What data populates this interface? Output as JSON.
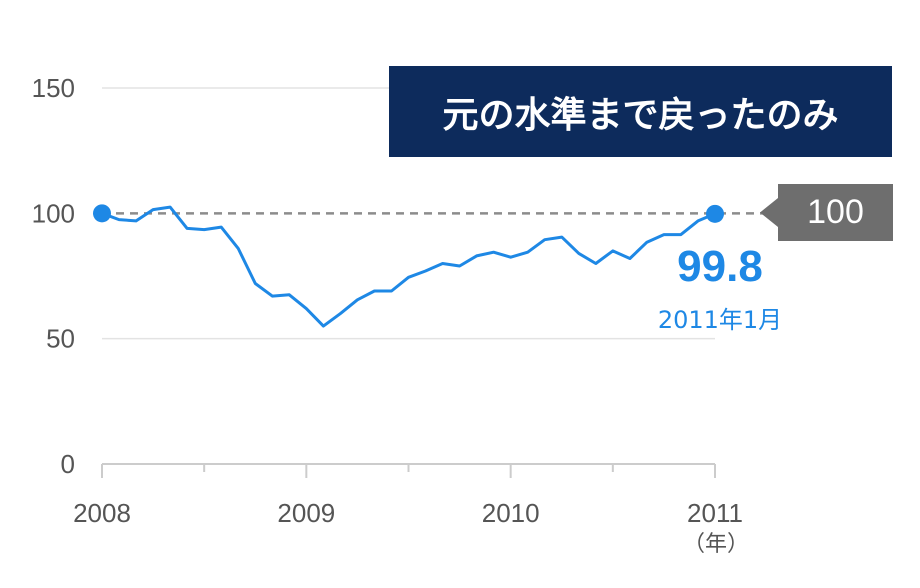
{
  "chart_data": {
    "type": "line",
    "title": "元の水準まで戻ったのみ",
    "ylim": [
      0,
      150
    ],
    "yticks": [
      0,
      50,
      100,
      150
    ],
    "xlim": [
      2008,
      2011
    ],
    "xticks": [
      "2008",
      "2009",
      "2010",
      "2011"
    ],
    "x_unit": "（年）",
    "reference_line": {
      "value": 100,
      "label": "100"
    },
    "end_annotation": {
      "value": "99.8",
      "date": "2011年1月"
    },
    "series": [
      {
        "values": [
          100.0,
          97.5,
          97.0,
          101.5,
          102.5,
          94.0,
          93.5,
          94.5,
          86.0,
          72.0,
          67.0,
          67.5,
          62.0,
          55.0,
          60.0,
          65.5,
          69.0,
          69.0,
          74.5,
          77.0,
          80.0,
          79.0,
          83.0,
          84.5,
          82.5,
          84.5,
          89.5,
          90.5,
          84.0,
          80.0,
          85.0,
          82.0,
          88.5,
          91.5,
          91.5,
          97.0,
          99.8
        ],
        "x_start": 2008,
        "x_step_months": 1
      }
    ],
    "colors": {
      "line": "#1e88e5",
      "marker": "#1e88e5",
      "reference": "#8c8c8c",
      "grid": "#e3e3e3",
      "banner": "#0d2b5c",
      "badge": "#6e6e6e"
    }
  }
}
